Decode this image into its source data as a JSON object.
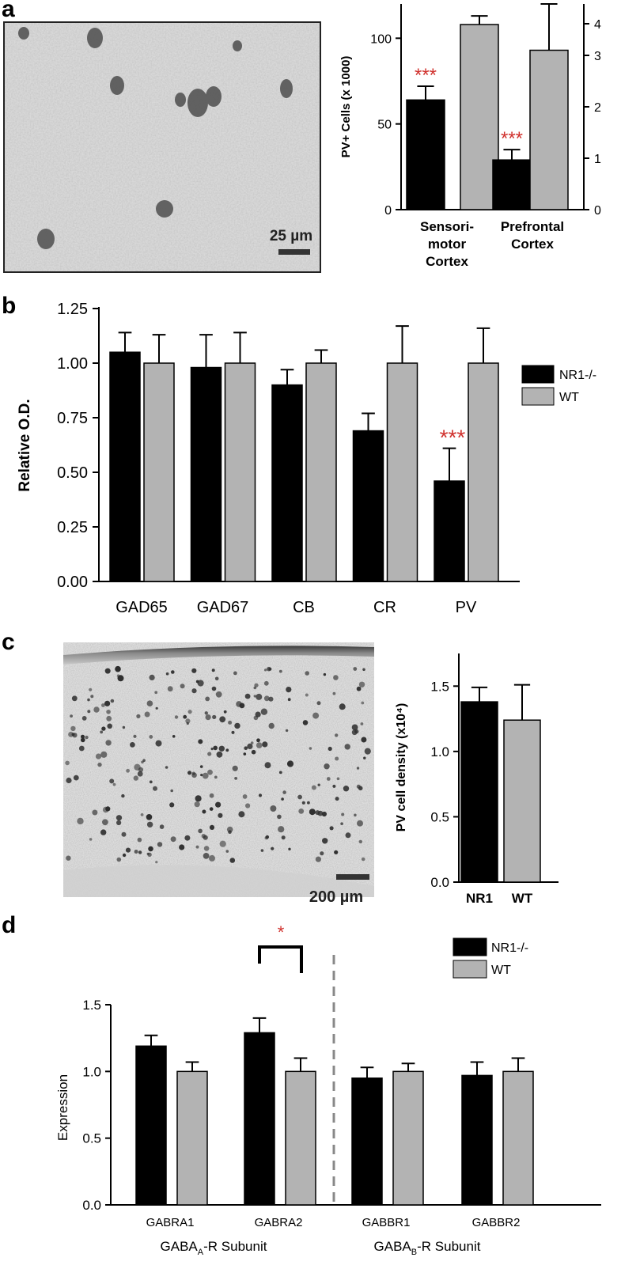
{
  "panel_labels": {
    "a": "a",
    "b": "b",
    "c": "c",
    "d": "d"
  },
  "images": {
    "micrograph_a": {
      "scale_text": "25 µm"
    },
    "micrograph_c": {
      "scale_text": "200 µm"
    }
  },
  "colors": {
    "nr1": "#000000",
    "wt": "#b3b3b3",
    "sig": "#d0312d"
  },
  "chart_data": [
    {
      "id": "a",
      "type": "bar",
      "ylabel": "PV+ Cells (x 1000)",
      "ylim_left": [
        0,
        120
      ],
      "ylim_right": [
        0,
        4
      ],
      "yticks_left": [
        "0",
        "50",
        "100"
      ],
      "yticks_right": [
        "0",
        "1",
        "2",
        "3",
        "4"
      ],
      "groups": [
        {
          "label_lines": [
            "Sensori-",
            "motor",
            "Cortex"
          ],
          "values": [
            64,
            108
          ],
          "errors": [
            8,
            5
          ],
          "sig": [
            "***",
            ""
          ]
        },
        {
          "label_lines": [
            "Prefrontal",
            "Cortex"
          ],
          "values": [
            29,
            93
          ],
          "errors": [
            6,
            27
          ],
          "sig": [
            "***",
            ""
          ]
        }
      ]
    },
    {
      "id": "b",
      "type": "bar",
      "ylabel": "Relative O.D.",
      "ylim": [
        0,
        1.25
      ],
      "yticks": [
        "0.00",
        "0.25",
        "0.50",
        "0.75",
        "1.00",
        "1.25"
      ],
      "categories": [
        "GAD65",
        "GAD67",
        "CB",
        "CR",
        "PV"
      ],
      "series": [
        {
          "name": "NR1-/-",
          "values": [
            1.05,
            0.98,
            0.9,
            0.69,
            0.46
          ],
          "errors": [
            0.09,
            0.15,
            0.07,
            0.08,
            0.15
          ]
        },
        {
          "name": "WT",
          "values": [
            1.0,
            1.0,
            1.0,
            1.0,
            1.0
          ],
          "errors": [
            0.13,
            0.14,
            0.06,
            0.17,
            0.16
          ]
        }
      ],
      "sig": [
        "",
        "",
        "",
        "",
        "***"
      ]
    },
    {
      "id": "c",
      "type": "bar",
      "ylabel": "PV cell density (x10⁴)",
      "ylim": [
        0,
        1.75
      ],
      "yticks": [
        "0.0",
        "0.5",
        "1.0",
        "1.5"
      ],
      "categories": [
        "NR1",
        "WT"
      ],
      "values": [
        1.38,
        1.24
      ],
      "errors": [
        0.11,
        0.27
      ]
    },
    {
      "id": "d",
      "type": "bar",
      "ylabel": "Expression",
      "ylim": [
        0,
        1.5
      ],
      "yticks": [
        "0.0",
        "0.5",
        "1.0",
        "1.5"
      ],
      "categories": [
        "GABRA1",
        "GABRA2",
        "GABBR1",
        "GABBR2"
      ],
      "series": [
        {
          "name": "NR1-/-",
          "values": [
            1.19,
            1.29,
            0.95,
            0.97
          ],
          "errors": [
            0.08,
            0.11,
            0.08,
            0.1
          ]
        },
        {
          "name": "WT",
          "values": [
            1.0,
            1.0,
            1.0,
            1.0
          ],
          "errors": [
            0.07,
            0.1,
            0.06,
            0.1
          ]
        }
      ],
      "sig_bracket": "*",
      "group_titles": [
        {
          "base": "GABA",
          "sub": "A",
          "rest": "-R Subunit"
        },
        {
          "base": "GABA",
          "sub": "B",
          "rest": "-R Subunit"
        }
      ]
    }
  ]
}
